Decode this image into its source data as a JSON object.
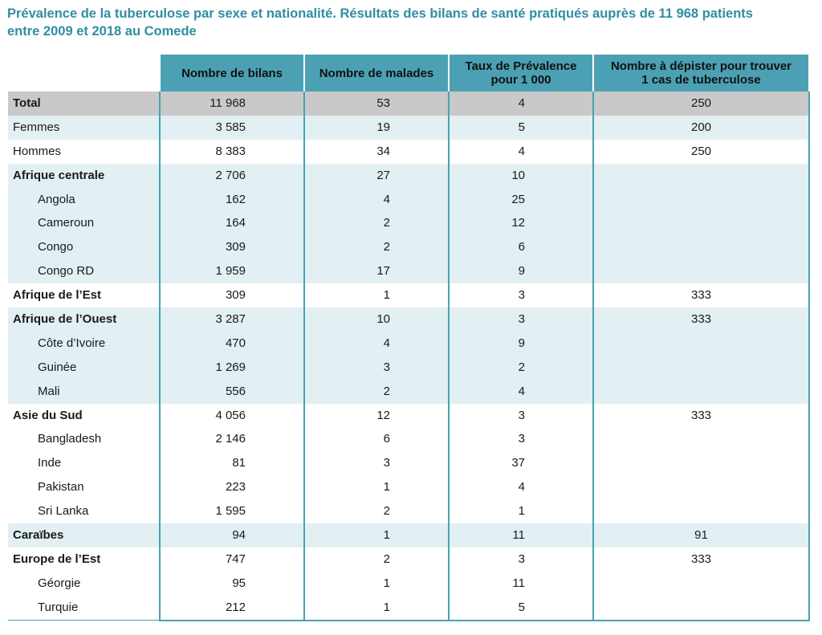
{
  "title": {
    "line1": "Prévalence de la tuberculose par sexe et nationalité. Résultats des bilans de santé pratiqués auprès de 11 968 patients",
    "line2": "entre 2009 et 2018 au Comede"
  },
  "columns": [
    "",
    "Nombre de bilans",
    "Nombre de malades",
    "Taux de Prévalence\npour 1 000",
    "Nombre à dépister pour trouver\n1 cas de tuberculose"
  ],
  "rows": [
    {
      "label": "Total",
      "bilans": "11 968",
      "malades": "53",
      "taux": "4",
      "depister": "250",
      "level": "total"
    },
    {
      "label": "Femmes",
      "bilans": "3 585",
      "malades": "19",
      "taux": "5",
      "depister": "200",
      "level": "item",
      "shade": true
    },
    {
      "label": "Hommes",
      "bilans": "8 383",
      "malades": "34",
      "taux": "4",
      "depister": "250",
      "level": "item",
      "shade": false
    },
    {
      "label": "Afrique centrale",
      "bilans": "2 706",
      "malades": "27",
      "taux": "10",
      "depister": "",
      "level": "group",
      "shade": true
    },
    {
      "label": "Angola",
      "bilans": "162",
      "malades": "4",
      "taux": "25",
      "depister": "",
      "level": "sub",
      "shade": true
    },
    {
      "label": "Cameroun",
      "bilans": "164",
      "malades": "2",
      "taux": "12",
      "depister": "",
      "level": "sub",
      "shade": true
    },
    {
      "label": "Congo",
      "bilans": "309",
      "malades": "2",
      "taux": "6",
      "depister": "",
      "level": "sub",
      "shade": true
    },
    {
      "label": "Congo RD",
      "bilans": "1 959",
      "malades": "17",
      "taux": "9",
      "depister": "",
      "level": "sub",
      "shade": true
    },
    {
      "label": "Afrique de l’Est",
      "bilans": "309",
      "malades": "1",
      "taux": "3",
      "depister": "333",
      "level": "group",
      "shade": false
    },
    {
      "label": "Afrique de l’Ouest",
      "bilans": "3 287",
      "malades": "10",
      "taux": "3",
      "depister": "333",
      "level": "group",
      "shade": true
    },
    {
      "label": "Côte d’Ivoire",
      "bilans": "470",
      "malades": "4",
      "taux": "9",
      "depister": "",
      "level": "sub",
      "shade": true
    },
    {
      "label": "Guinée",
      "bilans": "1 269",
      "malades": "3",
      "taux": "2",
      "depister": "",
      "level": "sub",
      "shade": true
    },
    {
      "label": "Mali",
      "bilans": "556",
      "malades": "2",
      "taux": "4",
      "depister": "",
      "level": "sub",
      "shade": true
    },
    {
      "label": "Asie du Sud",
      "bilans": "4 056",
      "malades": "12",
      "taux": "3",
      "depister": "333",
      "level": "group",
      "shade": false
    },
    {
      "label": "Bangladesh",
      "bilans": "2 146",
      "malades": "6",
      "taux": "3",
      "depister": "",
      "level": "sub",
      "shade": false
    },
    {
      "label": "Inde",
      "bilans": "81",
      "malades": "3",
      "taux": "37",
      "depister": "",
      "level": "sub",
      "shade": false
    },
    {
      "label": "Pakistan",
      "bilans": "223",
      "malades": "1",
      "taux": "4",
      "depister": "",
      "level": "sub",
      "shade": false
    },
    {
      "label": "Sri Lanka",
      "bilans": "1 595",
      "malades": "2",
      "taux": "1",
      "depister": "",
      "level": "sub",
      "shade": false
    },
    {
      "label": "Caraïbes",
      "bilans": "94",
      "malades": "1",
      "taux": "11",
      "depister": "91",
      "level": "group",
      "shade": true
    },
    {
      "label": "Europe de l’Est",
      "bilans": "747",
      "malades": "2",
      "taux": "3",
      "depister": "333",
      "level": "group",
      "shade": false
    },
    {
      "label": "Géorgie",
      "bilans": "95",
      "malades": "1",
      "taux": "11",
      "depister": "",
      "level": "sub",
      "shade": false
    },
    {
      "label": "Turquie",
      "bilans": "212",
      "malades": "1",
      "taux": "5",
      "depister": "",
      "level": "sub",
      "shade": false
    }
  ],
  "colors": {
    "title": "#2f8ea3",
    "header_bg": "#4ba1b3",
    "total_bg": "#c9c9c9",
    "shade_bg": "#e2eff3"
  }
}
